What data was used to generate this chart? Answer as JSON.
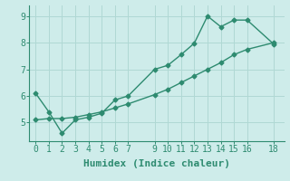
{
  "line1_x": [
    0,
    1,
    2,
    3,
    4,
    5,
    6,
    7,
    9,
    10,
    11,
    12,
    13,
    14,
    15,
    16,
    18
  ],
  "line1_y": [
    6.1,
    5.4,
    4.6,
    5.1,
    5.2,
    5.35,
    5.85,
    6.0,
    7.0,
    7.15,
    7.55,
    7.98,
    9.0,
    8.6,
    8.85,
    8.85,
    7.95
  ],
  "line2_x": [
    0,
    1,
    2,
    3,
    4,
    5,
    6,
    7,
    9,
    10,
    11,
    12,
    13,
    14,
    15,
    16,
    18
  ],
  "line2_y": [
    5.1,
    5.15,
    5.15,
    5.2,
    5.3,
    5.4,
    5.55,
    5.7,
    6.05,
    6.25,
    6.5,
    6.75,
    7.0,
    7.25,
    7.55,
    7.75,
    8.0
  ],
  "color": "#2e8b70",
  "bg_color": "#ceecea",
  "grid_color": "#b0d8d4",
  "xlabel": "Humidex (Indice chaleur)",
  "xlim": [
    -0.5,
    18.8
  ],
  "ylim": [
    4.3,
    9.4
  ],
  "xticks": [
    0,
    1,
    2,
    3,
    4,
    5,
    6,
    7,
    9,
    10,
    11,
    12,
    13,
    14,
    15,
    16,
    18
  ],
  "yticks": [
    5,
    6,
    7,
    8,
    9
  ],
  "marker": "D",
  "markersize": 2.5,
  "linewidth": 1.0,
  "xlabel_fontsize": 8,
  "tick_fontsize": 7
}
